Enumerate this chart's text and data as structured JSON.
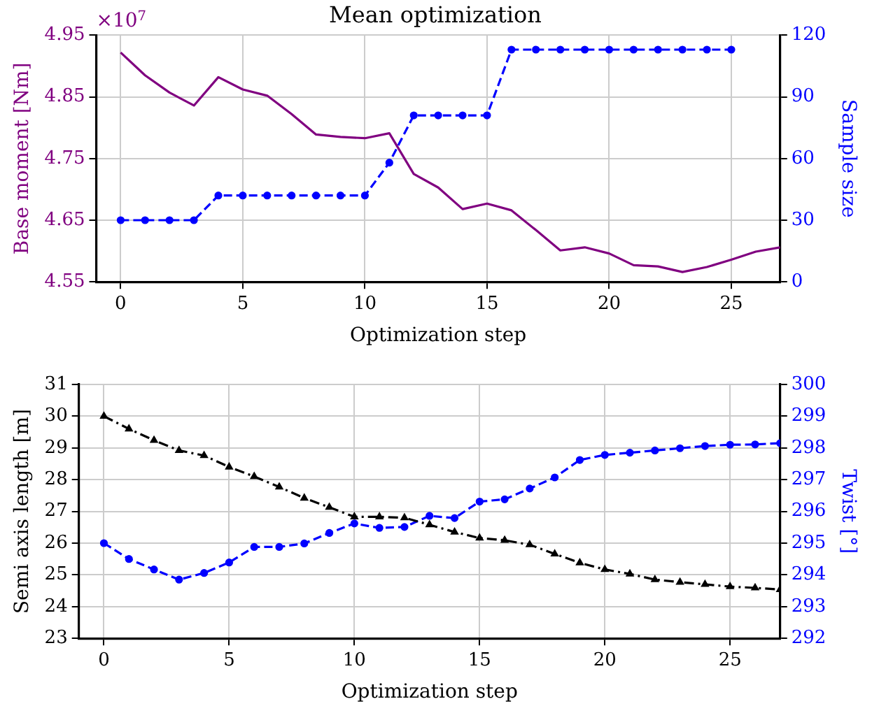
{
  "chart_data": [
    {
      "type": "line",
      "title": "Mean optimization",
      "xlabel": "Optimization step",
      "ylabel": "Base moment [Nm]",
      "y2label": "Sample size",
      "annotations": [
        "×10$^{7}$"
      ],
      "x": [
        0,
        1,
        2,
        3,
        4,
        5,
        6,
        7,
        8,
        9,
        10,
        11,
        12,
        13,
        14,
        15,
        16,
        17,
        18,
        19,
        20,
        21,
        22,
        23,
        24,
        25,
        26,
        27
      ],
      "series": [
        {
          "color": "#800080",
          "marker": "none",
          "line_style": "solid",
          "values": [
            4.922,
            4.885,
            4.857,
            4.836,
            4.882,
            4.862,
            4.852,
            4.822,
            4.789,
            4.785,
            4.783,
            4.791,
            4.725,
            4.703,
            4.668,
            4.677,
            4.666,
            4.634,
            4.601,
            4.606,
            4.596,
            4.577,
            4.575,
            4.566,
            4.574,
            4.586,
            4.599,
            4.606
          ]
        },
        {
          "color": "#0000ff",
          "axis": "y2",
          "marker": "circle",
          "line_style": "dashed",
          "values": [
            30,
            30,
            30,
            30,
            42,
            42,
            42,
            42,
            42,
            42,
            42,
            58,
            81,
            81,
            81,
            81,
            113,
            113,
            113,
            113,
            113,
            113,
            113,
            113,
            113,
            113,
            null,
            null
          ]
        }
      ],
      "xlim": [
        -1,
        27
      ],
      "xticks": [
        0,
        5,
        10,
        15,
        20,
        25
      ],
      "ylim": [
        4.55,
        4.95
      ],
      "yticks": [
        4.55,
        4.65,
        4.75,
        4.85,
        4.95
      ],
      "y2lim": [
        0,
        120
      ],
      "y2ticks": [
        0,
        30,
        60,
        90,
        120
      ],
      "grid": true,
      "legend": false
    },
    {
      "type": "line",
      "xlabel": "Optimization step",
      "ylabel": "Semi axis length [m]",
      "y2label": "Twist [°]",
      "x": [
        0,
        1,
        2,
        3,
        4,
        5,
        6,
        7,
        8,
        9,
        10,
        11,
        12,
        13,
        14,
        15,
        16,
        17,
        18,
        19,
        20,
        21,
        22,
        23,
        24,
        25,
        26,
        27
      ],
      "series": [
        {
          "color": "#000000",
          "marker": "triangle",
          "line_style": "dashdot",
          "values": [
            30.0,
            29.6,
            29.24,
            28.92,
            28.76,
            28.4,
            28.1,
            27.77,
            27.42,
            27.13,
            26.83,
            26.83,
            26.8,
            26.58,
            26.35,
            26.16,
            26.09,
            25.95,
            25.66,
            25.38,
            25.17,
            25.03,
            24.85,
            24.77,
            24.7,
            24.63,
            24.59,
            24.54
          ]
        },
        {
          "color": "#0000ff",
          "axis": "y2",
          "marker": "circle",
          "line_style": "dashed",
          "values": [
            295.0,
            294.5,
            294.17,
            293.85,
            294.06,
            294.39,
            294.88,
            294.88,
            294.99,
            295.32,
            295.62,
            295.48,
            295.51,
            295.86,
            295.79,
            296.31,
            296.38,
            296.72,
            297.07,
            297.62,
            297.78,
            297.85,
            297.92,
            297.99,
            298.06,
            298.1,
            298.11,
            298.15
          ]
        }
      ],
      "xlim": [
        -1,
        27
      ],
      "xticks": [
        0,
        5,
        10,
        15,
        20,
        25
      ],
      "ylim": [
        23,
        31
      ],
      "yticks": [
        23,
        24,
        25,
        26,
        27,
        28,
        29,
        30,
        31
      ],
      "y2lim": [
        292,
        300
      ],
      "y2ticks": [
        292,
        293,
        294,
        295,
        296,
        297,
        298,
        299,
        300
      ],
      "grid": true,
      "legend": false
    }
  ]
}
